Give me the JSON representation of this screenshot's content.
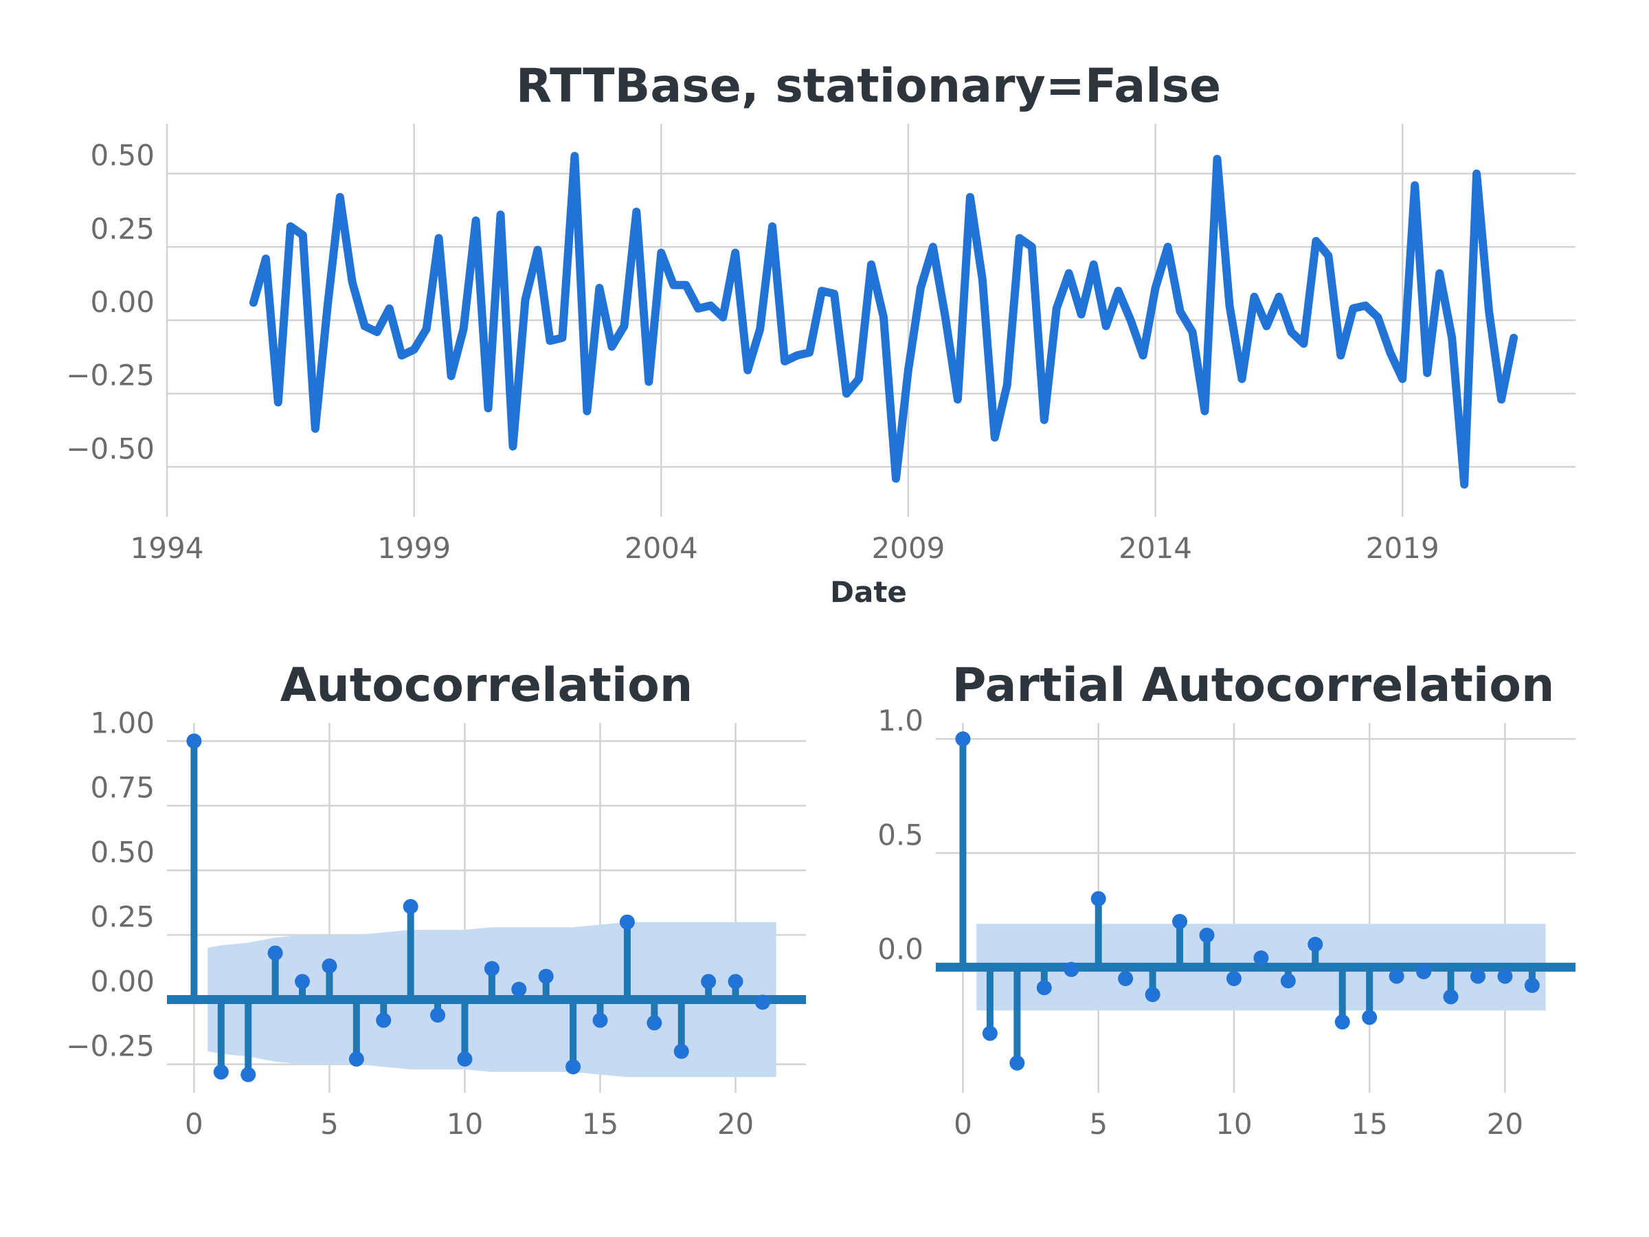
{
  "colors": {
    "line": "#2273d6",
    "stem": "#1f77b4",
    "marker": "#2273d6",
    "confidence_band": "#c6dbf2",
    "grid": "#d3d3d3",
    "title": "#2f353c",
    "tick": "#6b6b6b"
  },
  "chart_data": [
    {
      "type": "line",
      "title": "RTTBase, stationary=False",
      "xlabel": "Date",
      "ylabel": "",
      "xlim": [
        1994,
        2022.5
      ],
      "ylim": [
        -0.67,
        0.67
      ],
      "xticks": [
        1994,
        1999,
        2004,
        2009,
        2014,
        2019
      ],
      "xtick_labels": [
        "1994",
        "1999",
        "2004",
        "2009",
        "2014",
        "2019"
      ],
      "yticks": [
        0.5,
        0.25,
        0,
        -0.25,
        -0.5
      ],
      "ytick_labels": [
        "0.50",
        "0.25",
        "0.00",
        "−0.25",
        "−0.50"
      ],
      "grid": true,
      "series": [
        {
          "x": [
            1995.75,
            1996,
            1996.25,
            1996.5,
            1996.75,
            1997,
            1997.25,
            1997.5,
            1997.75,
            1998,
            1998.25,
            1998.5,
            1998.75,
            1999,
            1999.25,
            1999.5,
            1999.75,
            2000,
            2000.25,
            2000.5,
            2000.75,
            2001,
            2001.25,
            2001.5,
            2001.75,
            2002,
            2002.25,
            2002.5,
            2002.75,
            2003,
            2003.25,
            2003.5,
            2003.75,
            2004,
            2004.25,
            2004.5,
            2004.75,
            2005,
            2005.25,
            2005.5,
            2005.75,
            2006,
            2006.25,
            2006.5,
            2006.75,
            2007,
            2007.25,
            2007.5,
            2007.75,
            2008,
            2008.25,
            2008.5,
            2008.75,
            2009,
            2009.25,
            2009.5,
            2009.75,
            2010,
            2010.25,
            2010.5,
            2010.75,
            2011,
            2011.25,
            2011.5,
            2011.75,
            2012,
            2012.25,
            2012.5,
            2012.75,
            2013,
            2013.25,
            2013.5,
            2013.75,
            2014,
            2014.25,
            2014.5,
            2014.75,
            2015,
            2015.25,
            2015.5,
            2015.75,
            2016,
            2016.25,
            2016.5,
            2016.75,
            2017,
            2017.25,
            2017.5,
            2017.75,
            2018,
            2018.25,
            2018.5,
            2018.75,
            2019,
            2019.25,
            2019.5,
            2019.75,
            2020,
            2020.25,
            2020.5,
            2020.75,
            2021,
            2021.25
          ],
          "y": [
            0.06,
            0.21,
            -0.28,
            0.32,
            0.29,
            -0.37,
            0.05,
            0.42,
            0.13,
            -0.02,
            -0.04,
            0.04,
            -0.12,
            -0.1,
            -0.03,
            0.28,
            -0.19,
            -0.03,
            0.34,
            -0.3,
            0.36,
            -0.43,
            0.07,
            0.24,
            -0.07,
            -0.06,
            0.56,
            -0.31,
            0.11,
            -0.09,
            -0.02,
            0.37,
            -0.21,
            0.23,
            0.12,
            0.12,
            0.04,
            0.05,
            0.01,
            0.23,
            -0.17,
            -0.03,
            0.32,
            -0.14,
            -0.12,
            -0.11,
            0.1,
            0.09,
            -0.25,
            -0.2,
            0.19,
            0.01,
            -0.54,
            -0.17,
            0.11,
            0.25,
            0.01,
            -0.27,
            0.42,
            0.14,
            -0.4,
            -0.22,
            0.28,
            0.25,
            -0.34,
            0.04,
            0.16,
            0.02,
            0.19,
            -0.02,
            0.1,
            0,
            -0.12,
            0.11,
            0.25,
            0.03,
            -0.04,
            -0.31,
            0.55,
            0.05,
            -0.2,
            0.08,
            -0.02,
            0.08,
            -0.04,
            -0.08,
            0.27,
            0.22,
            -0.12,
            0.04,
            0.05,
            0.01,
            -0.11,
            -0.2,
            0.46,
            -0.18,
            0.16,
            -0.06,
            -0.56,
            0.5,
            0.03,
            -0.27,
            -0.06
          ]
        }
      ]
    },
    {
      "type": "bar",
      "subtype": "stem",
      "title": "Autocorrelation",
      "xlabel": "",
      "ylabel": "",
      "xlim": [
        -1,
        22.6
      ],
      "ylim": [
        -0.36,
        1.07
      ],
      "xticks": [
        0,
        5,
        10,
        15,
        20
      ],
      "xtick_labels": [
        "0",
        "5",
        "10",
        "15",
        "20"
      ],
      "yticks": [
        1,
        0.75,
        0.5,
        0.25,
        0,
        -0.25
      ],
      "ytick_labels": [
        "1.00",
        "0.75",
        "0.50",
        "0.25",
        "0.00",
        "−0.25"
      ],
      "grid": true,
      "x": [
        0,
        1,
        2,
        3,
        4,
        5,
        6,
        7,
        8,
        9,
        10,
        11,
        12,
        13,
        14,
        15,
        16,
        17,
        18,
        19,
        20,
        21
      ],
      "values": [
        1.0,
        -0.28,
        -0.29,
        0.18,
        0.07,
        0.13,
        -0.23,
        -0.08,
        0.36,
        -0.06,
        -0.23,
        0.12,
        0.04,
        0.09,
        -0.26,
        -0.08,
        0.3,
        -0.09,
        -0.2,
        0.07,
        0.07,
        -0.01
      ],
      "confidence_band": {
        "x": [
          0.5,
          1,
          2,
          3,
          4,
          5,
          6,
          7,
          8,
          9,
          10,
          11,
          12,
          13,
          14,
          15,
          16,
          17,
          18,
          19,
          20,
          21,
          21.5
        ],
        "upper": [
          0.2,
          0.21,
          0.22,
          0.24,
          0.25,
          0.25,
          0.25,
          0.26,
          0.27,
          0.27,
          0.27,
          0.28,
          0.28,
          0.28,
          0.28,
          0.29,
          0.3,
          0.3,
          0.3,
          0.3,
          0.3,
          0.3,
          0.3
        ],
        "lower": [
          -0.2,
          -0.21,
          -0.22,
          -0.24,
          -0.25,
          -0.25,
          -0.25,
          -0.26,
          -0.27,
          -0.27,
          -0.27,
          -0.28,
          -0.28,
          -0.28,
          -0.28,
          -0.29,
          -0.3,
          -0.3,
          -0.3,
          -0.3,
          -0.3,
          -0.3,
          -0.3
        ]
      }
    },
    {
      "type": "bar",
      "subtype": "stem",
      "title": "Partial Autocorrelation",
      "xlabel": "",
      "ylabel": "",
      "xlim": [
        -1,
        22.6
      ],
      "ylim": [
        -0.55,
        1.07
      ],
      "xticks": [
        0,
        5,
        10,
        15,
        20
      ],
      "xtick_labels": [
        "0",
        "5",
        "10",
        "15",
        "20"
      ],
      "yticks": [
        1.0,
        0.5,
        0.0
      ],
      "ytick_labels": [
        "1.0",
        "0.5",
        "0.0"
      ],
      "grid": true,
      "x": [
        0,
        1,
        2,
        3,
        4,
        5,
        6,
        7,
        8,
        9,
        10,
        11,
        12,
        13,
        14,
        15,
        16,
        17,
        18,
        19,
        20,
        21
      ],
      "values": [
        1.0,
        -0.29,
        -0.42,
        -0.09,
        -0.01,
        0.3,
        -0.05,
        -0.12,
        0.2,
        0.14,
        -0.05,
        0.04,
        -0.06,
        0.1,
        -0.24,
        -0.22,
        -0.04,
        -0.02,
        -0.13,
        -0.04,
        -0.04,
        -0.08
      ],
      "confidence_band": {
        "x": [
          0.5,
          21.5
        ],
        "upper": [
          0.19,
          0.19
        ],
        "lower": [
          -0.19,
          -0.19
        ]
      }
    }
  ]
}
